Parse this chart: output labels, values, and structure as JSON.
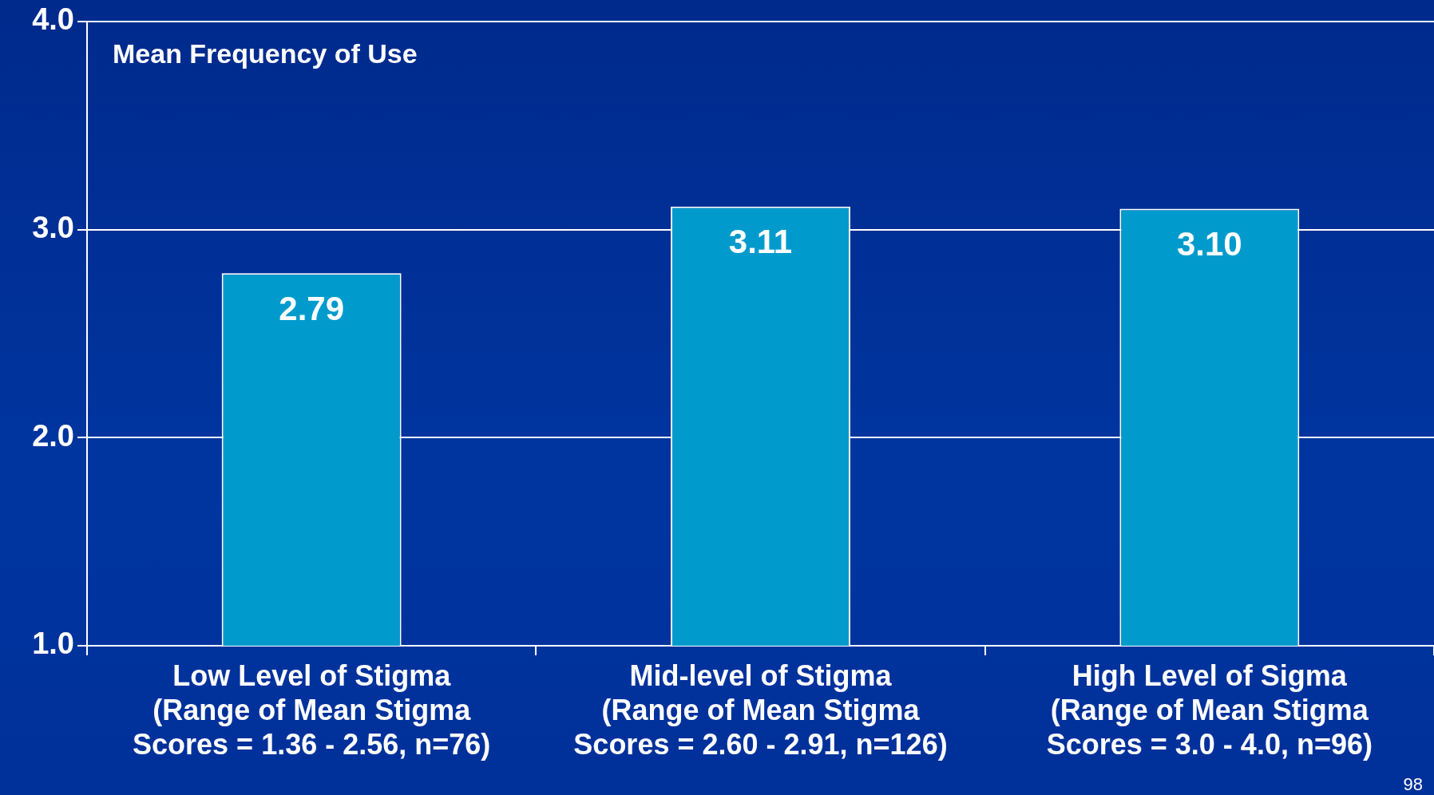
{
  "chart_data": {
    "type": "bar",
    "title": "Mean Frequency of Use",
    "categories": [
      "Low Level of Stigma\n(Range of Mean Stigma\nScores = 1.36 - 2.56, n=76)",
      "Mid-level of Stigma\n(Range of Mean Stigma\nScores = 2.60 - 2.91, n=126)",
      "High Level of Sigma\n(Range of Mean Stigma\nScores = 3.0 - 4.0, n=96)"
    ],
    "values": [
      2.79,
      3.11,
      3.1
    ],
    "color": "#009bcc",
    "ylim": [
      1,
      4
    ],
    "yticks": [
      {
        "value": 1,
        "label": "1.0"
      },
      {
        "value": 2,
        "label": "2.0"
      },
      {
        "value": 3,
        "label": "3.0"
      },
      {
        "value": 4,
        "label": "4.0"
      }
    ],
    "value_labels": [
      "2.79",
      "3.11",
      "3.10"
    ],
    "grid": "y",
    "legend": false,
    "annotations": [
      "98"
    ]
  }
}
